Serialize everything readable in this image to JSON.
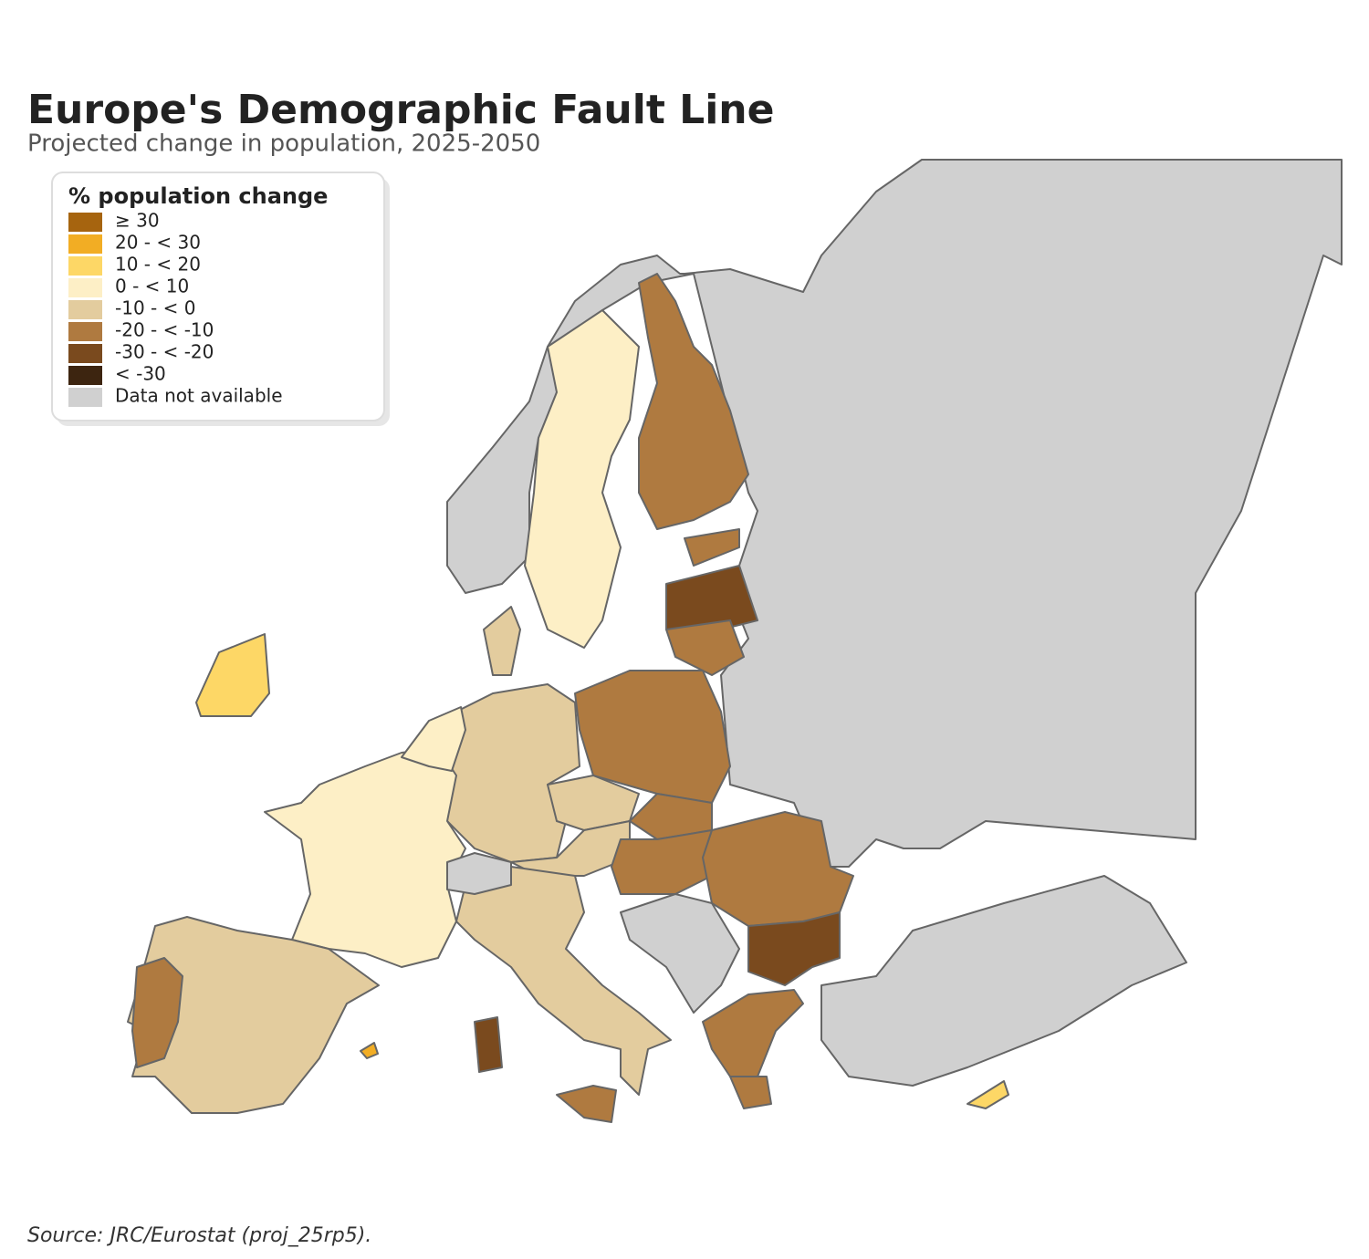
{
  "header": {
    "title": "Europe's Demographic Fault Line",
    "subtitle": "Projected change in population, 2025-2050"
  },
  "legend": {
    "title": "% population change",
    "items": [
      {
        "label": "≥ 30",
        "color": "#a6640f"
      },
      {
        "label": "20 - < 30",
        "color": "#f2ad24"
      },
      {
        "label": "10 - < 20",
        "color": "#fdd766"
      },
      {
        "label": "0 - < 10",
        "color": "#fdefc6"
      },
      {
        "label": "-10 - < 0",
        "color": "#e3cc9e"
      },
      {
        "label": "-20 - < -10",
        "color": "#af7a40"
      },
      {
        "label": "-30 - < -20",
        "color": "#7a4a1e"
      },
      {
        "label": "< -30",
        "color": "#3d2510"
      },
      {
        "label": "Data not available",
        "color": "#d0d0d0"
      }
    ]
  },
  "source": "Source: JRC/Eurostat (proj_25rp5)."
}
